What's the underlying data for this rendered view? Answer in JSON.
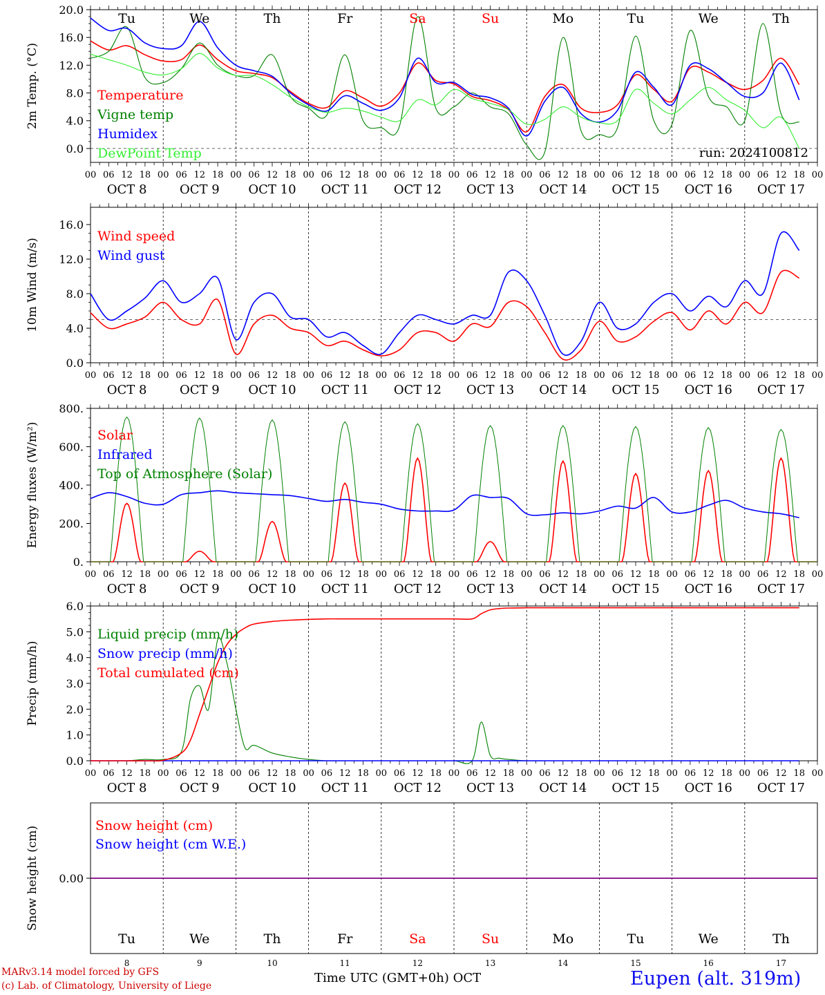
{
  "days": [
    "Tu",
    "We",
    "Th",
    "Fr",
    "Sa",
    "Su",
    "Mo",
    "Tu",
    "We",
    "Th"
  ],
  "weekend_idx": [
    4,
    5
  ],
  "date_labels": [
    "OCT  8",
    "OCT  9",
    "OCT 10",
    "OCT 11",
    "OCT 12",
    "OCT 13",
    "OCT 14",
    "OCT 15",
    "OCT 16",
    "OCT 17"
  ],
  "day_numbers": [
    "8",
    "9",
    "10",
    "11",
    "12",
    "13",
    "14",
    "15",
    "16",
    "17"
  ],
  "hour_ticks": [
    "00",
    "06",
    "12",
    "18"
  ],
  "last_tick": "00",
  "run_label": "run: 2024100812",
  "footer": {
    "model": "MARv3.14 model forced by GFS",
    "lab": "(c) Lab. of Climatology, University of Liege",
    "time_label": "Time UTC (GMT+0h)",
    "month": "OCT",
    "station": "Eupen (alt. 319m)"
  },
  "colors": {
    "red": "#ff0000",
    "green": "#008000",
    "blue": "#0000ff",
    "lightgreen": "#33ee33",
    "purple": "#800080",
    "darkred": "#cc0000"
  },
  "chart_data": [
    {
      "type": "line",
      "ylabel": "2m Temp. (°C)",
      "yticks": [
        "0.0",
        "4.0",
        "8.0",
        "12.0",
        "16.0",
        "20.0"
      ],
      "ylim": [
        -2,
        20
      ],
      "x_unit": "hours since 2024-10-08 00 UTC",
      "x": [
        0,
        6,
        12,
        18,
        24,
        30,
        36,
        42,
        48,
        54,
        60,
        66,
        72,
        78,
        84,
        90,
        96,
        102,
        108,
        114,
        120,
        126,
        132,
        138,
        144,
        150,
        156,
        162,
        168,
        174,
        180,
        186,
        192,
        198,
        204,
        210,
        216,
        222,
        228,
        234
      ],
      "series": [
        {
          "name": "Temperature",
          "color": "red",
          "values": [
            15.5,
            14.2,
            14.8,
            13.5,
            12.6,
            12.8,
            14.9,
            12.8,
            11.2,
            10.8,
            10.2,
            8.2,
            6.5,
            5.9,
            8.3,
            7.3,
            6.1,
            8.0,
            12.3,
            9.8,
            9.3,
            7.5,
            6.9,
            5.6,
            2.4,
            7.5,
            9.2,
            5.8,
            5.2,
            6.3,
            10.6,
            8.5,
            6.8,
            11.6,
            11.0,
            9.5,
            8.5,
            9.8,
            13.0,
            9.2
          ]
        },
        {
          "name": "Vigne temp",
          "color": "green",
          "values": [
            13.0,
            14.0,
            17.5,
            10.2,
            9.5,
            11.5,
            15.2,
            12.0,
            10.5,
            10.5,
            13.5,
            7.5,
            5.8,
            4.8,
            13.5,
            4.0,
            3.0,
            3.2,
            19.0,
            5.8,
            6.0,
            8.0,
            6.0,
            5.0,
            0.5,
            -0.5,
            16.0,
            2.5,
            2.0,
            3.0,
            16.2,
            4.0,
            3.5,
            17.0,
            7.5,
            6.0,
            4.0,
            18.0,
            5.0,
            3.8
          ]
        },
        {
          "name": "Humidex",
          "color": "blue",
          "values": [
            18.8,
            17.0,
            17.3,
            15.2,
            14.4,
            14.8,
            18.3,
            14.5,
            12.0,
            11.2,
            10.4,
            8.0,
            6.3,
            5.4,
            7.6,
            6.5,
            5.5,
            7.3,
            13.0,
            9.5,
            9.5,
            7.8,
            7.3,
            5.8,
            1.8,
            6.8,
            8.8,
            5.0,
            3.8,
            5.5,
            11.0,
            8.8,
            6.3,
            12.0,
            11.5,
            9.5,
            7.5,
            8.0,
            12.3,
            7.0
          ]
        },
        {
          "name": "DewPoint Temp",
          "color": "lightgreen",
          "values": [
            13.6,
            12.8,
            12.0,
            11.0,
            10.6,
            11.5,
            13.7,
            11.6,
            10.5,
            10.5,
            9.2,
            7.4,
            6.0,
            5.2,
            5.8,
            5.4,
            4.5,
            4.0,
            7.0,
            6.3,
            8.5,
            7.2,
            6.5,
            5.6,
            3.5,
            4.2,
            6.0,
            4.5,
            3.7,
            4.0,
            8.5,
            6.5,
            5.0,
            7.0,
            8.8,
            7.0,
            5.5,
            3.0,
            4.5,
            0.0
          ]
        }
      ],
      "ref_line": 0,
      "legend": "top-left"
    },
    {
      "type": "line",
      "ylabel": "10m Wind (m/s)",
      "yticks": [
        "0.0",
        "4.0",
        "8.0",
        "12.0",
        "16.0"
      ],
      "ylim": [
        0,
        18
      ],
      "x_unit": "hours since 2024-10-08 00 UTC",
      "x": [
        0,
        6,
        12,
        18,
        24,
        30,
        36,
        42,
        48,
        54,
        60,
        66,
        72,
        78,
        84,
        90,
        96,
        102,
        108,
        114,
        120,
        126,
        132,
        138,
        144,
        150,
        156,
        162,
        168,
        174,
        180,
        186,
        192,
        198,
        204,
        210,
        216,
        222,
        228,
        234
      ],
      "series": [
        {
          "name": "Wind speed",
          "color": "red",
          "values": [
            5.8,
            4.0,
            4.5,
            5.3,
            7.0,
            5.0,
            4.5,
            7.3,
            1.0,
            4.5,
            5.5,
            4.0,
            3.5,
            2.0,
            2.5,
            1.5,
            0.8,
            1.5,
            3.5,
            3.5,
            2.5,
            4.5,
            4.2,
            7.0,
            6.5,
            3.5,
            0.4,
            1.5,
            4.8,
            2.5,
            3.0,
            4.8,
            5.8,
            3.8,
            6.0,
            4.5,
            7.0,
            5.8,
            10.5,
            9.8
          ]
        },
        {
          "name": "Wind gust",
          "color": "blue",
          "values": [
            8.0,
            5.0,
            6.0,
            7.5,
            9.5,
            7.0,
            8.0,
            9.8,
            2.7,
            7.0,
            8.0,
            5.3,
            5.0,
            3.0,
            3.5,
            2.0,
            1.0,
            3.5,
            5.5,
            5.0,
            4.5,
            5.5,
            5.5,
            10.5,
            9.5,
            5.5,
            1.0,
            2.5,
            7.0,
            4.0,
            4.5,
            7.0,
            8.0,
            6.0,
            7.7,
            6.5,
            9.5,
            8.0,
            15.0,
            13.0
          ]
        }
      ],
      "ref_line": 5,
      "legend": "top-left"
    },
    {
      "type": "line",
      "ylabel": "Energy fluxes (W/m²)",
      "yticks": [
        "0.",
        "200.",
        "400.",
        "600.",
        "800."
      ],
      "ylim": [
        0,
        800
      ],
      "x_unit": "hours since 2024-10-08 00 UTC",
      "daily_peak_hour": 12,
      "series": [
        {
          "name": "Solar",
          "color": "red",
          "daily_peaks": [
            305,
            55,
            210,
            410,
            540,
            105,
            525,
            460,
            475,
            540
          ]
        },
        {
          "name": "Infrared",
          "color": "blue",
          "x": [
            0,
            6,
            12,
            18,
            24,
            30,
            36,
            42,
            48,
            54,
            60,
            66,
            72,
            78,
            84,
            90,
            96,
            102,
            108,
            114,
            120,
            126,
            132,
            138,
            144,
            150,
            156,
            162,
            168,
            174,
            180,
            186,
            192,
            198,
            204,
            210,
            216,
            222,
            228,
            234
          ],
          "values": [
            330,
            360,
            340,
            305,
            300,
            350,
            360,
            370,
            360,
            355,
            350,
            345,
            330,
            315,
            325,
            310,
            300,
            275,
            265,
            265,
            270,
            345,
            335,
            330,
            250,
            245,
            255,
            250,
            265,
            290,
            280,
            335,
            260,
            260,
            295,
            320,
            280,
            260,
            250,
            230
          ]
        },
        {
          "name": "Top of Atmosphere (Solar)",
          "color": "green",
          "daily_peaks": [
            755,
            750,
            740,
            730,
            720,
            710,
            710,
            705,
            700,
            690
          ]
        }
      ],
      "legend": "top-left"
    },
    {
      "type": "line",
      "ylabel": "Precip (mm/h)",
      "yticks": [
        "0.0",
        "1.0",
        "2.0",
        "3.0",
        "4.0",
        "5.0",
        "6.0"
      ],
      "ylim": [
        0,
        6
      ],
      "x_unit": "hours since 2024-10-08 00 UTC",
      "x": [
        0,
        6,
        12,
        18,
        24,
        30,
        33,
        36,
        39,
        42,
        45,
        48,
        51,
        54,
        60,
        66,
        72,
        78,
        84,
        90,
        96,
        102,
        108,
        114,
        120,
        126,
        129,
        132,
        135,
        138,
        144,
        150,
        156,
        162,
        168,
        174,
        180,
        186,
        192,
        198,
        204,
        210,
        216,
        222,
        228,
        234
      ],
      "series": [
        {
          "name": "Liquid precip (mm/h)",
          "color": "green",
          "values": [
            0,
            0,
            0,
            0.05,
            0.05,
            0.35,
            2.4,
            2.9,
            2.0,
            4.7,
            3.8,
            2.0,
            0.5,
            0.6,
            0.3,
            0.15,
            0.05,
            0,
            0,
            0,
            0,
            0,
            0,
            0,
            0,
            0,
            1.5,
            0.2,
            0.1,
            0.05,
            0,
            0,
            0,
            0,
            0,
            0,
            0,
            0,
            0,
            0,
            0,
            0,
            0,
            0,
            0,
            0
          ]
        },
        {
          "name": "Snow precip (mm/h)",
          "color": "blue",
          "values": [
            0,
            0,
            0,
            0,
            0,
            0,
            0,
            0,
            0,
            0,
            0,
            0,
            0,
            0,
            0,
            0,
            0,
            0,
            0,
            0,
            0,
            0,
            0,
            0,
            0,
            0,
            0,
            0,
            0,
            0,
            0,
            0,
            0,
            0,
            0,
            0,
            0,
            0,
            0,
            0,
            0,
            0,
            0,
            0,
            0,
            0
          ]
        },
        {
          "name": "Total cumulated (cm)",
          "color": "red",
          "values": [
            0,
            0,
            0,
            0,
            0.02,
            0.3,
            0.8,
            1.8,
            2.8,
            3.8,
            4.5,
            4.9,
            5.15,
            5.3,
            5.4,
            5.45,
            5.48,
            5.5,
            5.5,
            5.5,
            5.5,
            5.5,
            5.5,
            5.5,
            5.5,
            5.5,
            5.7,
            5.85,
            5.9,
            5.92,
            5.93,
            5.93,
            5.93,
            5.93,
            5.93,
            5.93,
            5.93,
            5.93,
            5.93,
            5.93,
            5.93,
            5.93,
            5.93,
            5.93,
            5.93,
            5.93
          ]
        }
      ],
      "legend": "top-left"
    },
    {
      "type": "line",
      "ylabel": "Snow height (cm)",
      "yticks": [
        "0.00"
      ],
      "ylim": [
        -1,
        1
      ],
      "series": [
        {
          "name": "Snow height (cm)",
          "color": "red",
          "values": [
            0
          ]
        },
        {
          "name": "Snow height (cm W.E.)",
          "color": "blue",
          "values": [
            0
          ]
        }
      ],
      "legend": "top-left"
    }
  ]
}
